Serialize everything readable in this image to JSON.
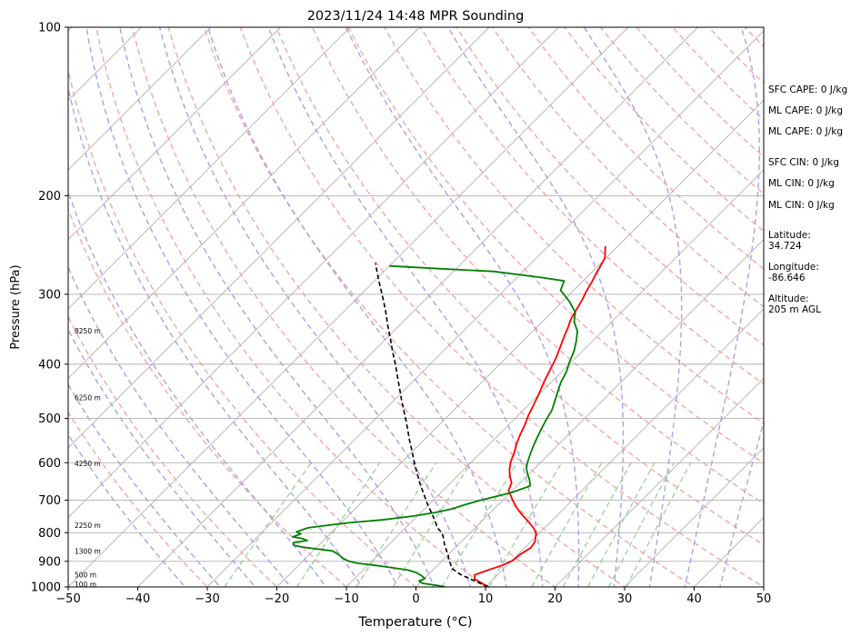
{
  "chart_data": {
    "type": "line",
    "title": "2023/11/24 14:48 MPR Sounding",
    "xlabel": "Temperature (°C)",
    "ylabel": "Pressure (hPa)",
    "xlim": [
      -50,
      50
    ],
    "ylim": [
      1000,
      100
    ],
    "y_scale": "log",
    "x_ticks": [
      "−50",
      "−40",
      "−30",
      "−20",
      "−10",
      "0",
      "10",
      "20",
      "30",
      "40",
      "50"
    ],
    "x_tick_values": [
      -50,
      -40,
      -30,
      -20,
      -10,
      0,
      10,
      20,
      30,
      40,
      50
    ],
    "y_ticks": [
      "100",
      "200",
      "300",
      "400",
      "500",
      "600",
      "700",
      "800",
      "900",
      "1000"
    ],
    "y_tick_values": [
      100,
      200,
      300,
      400,
      500,
      600,
      700,
      800,
      900,
      1000
    ],
    "grid": "horizontal",
    "height_labels": [
      {
        "text": "100 m",
        "p": 993
      },
      {
        "text": "500 m",
        "p": 954
      },
      {
        "text": "1300 m",
        "p": 866
      },
      {
        "text": "2250 m",
        "p": 778
      },
      {
        "text": "4250 m",
        "p": 604
      },
      {
        "text": "6250 m",
        "p": 460
      },
      {
        "text": "8250 m",
        "p": 350
      }
    ],
    "series": [
      {
        "color": "#ff0000",
        "style": "solid",
        "points": [
          [
            10.4,
            1000
          ],
          [
            9.0,
            985
          ],
          [
            7.3,
            968
          ],
          [
            6.7,
            952
          ],
          [
            7.8,
            935
          ],
          [
            9.3,
            915
          ],
          [
            10.1,
            897
          ],
          [
            10.3,
            875
          ],
          [
            10.9,
            851
          ],
          [
            10.6,
            830
          ],
          [
            9.6,
            803
          ],
          [
            8.6,
            787
          ],
          [
            7.0,
            767
          ],
          [
            5.3,
            748
          ],
          [
            4.1,
            734
          ],
          [
            2.8,
            718
          ],
          [
            1.3,
            698
          ],
          [
            0.3,
            684
          ],
          [
            -0.6,
            672
          ],
          [
            -1.2,
            652
          ],
          [
            -2.3,
            636
          ],
          [
            -3.5,
            616
          ],
          [
            -4.4,
            597
          ],
          [
            -5.2,
            575
          ],
          [
            -6.1,
            556
          ],
          [
            -6.9,
            535
          ],
          [
            -7.6,
            515
          ],
          [
            -8.5,
            494
          ],
          [
            -9.3,
            472
          ],
          [
            -10.1,
            452
          ],
          [
            -11.1,
            430
          ],
          [
            -12.0,
            408
          ],
          [
            -12.8,
            390
          ],
          [
            -13.7,
            374
          ],
          [
            -14.6,
            359
          ],
          [
            -15.4,
            345
          ],
          [
            -16.2,
            333
          ],
          [
            -16.8,
            320
          ],
          [
            -17.4,
            307
          ],
          [
            -18.0,
            297
          ],
          [
            -18.6,
            285
          ],
          [
            -19.2,
            275
          ],
          [
            -19.7,
            266
          ],
          [
            -20.2,
            258
          ],
          [
            -21.0,
            252
          ],
          [
            -21.8,
            246
          ]
        ]
      },
      {
        "color": "#008000",
        "style": "solid",
        "points": [
          [
            4.2,
            1000
          ],
          [
            2.7,
            993
          ],
          [
            0.4,
            985
          ],
          [
            -0.4,
            976
          ],
          [
            0.1,
            966
          ],
          [
            -0.9,
            954
          ],
          [
            -2.1,
            942
          ],
          [
            -3.6,
            933
          ],
          [
            -6.4,
            923
          ],
          [
            -9.0,
            915
          ],
          [
            -11.8,
            907
          ],
          [
            -13.3,
            900
          ],
          [
            -14.7,
            888
          ],
          [
            -15.8,
            875
          ],
          [
            -17.2,
            862
          ],
          [
            -20.2,
            854
          ],
          [
            -22.3,
            848
          ],
          [
            -23.6,
            842
          ],
          [
            -24.0,
            834
          ],
          [
            -22.3,
            826
          ],
          [
            -23.2,
            820
          ],
          [
            -24.9,
            814
          ],
          [
            -24.2,
            804
          ],
          [
            -25.1,
            797
          ],
          [
            -24.5,
            790
          ],
          [
            -24.0,
            784
          ],
          [
            -21.0,
            774
          ],
          [
            -18.9,
            768
          ],
          [
            -14.5,
            759
          ],
          [
            -10.6,
            747
          ],
          [
            -7.9,
            736
          ],
          [
            -6.0,
            725
          ],
          [
            -4.8,
            713
          ],
          [
            -3.2,
            700
          ],
          [
            -1.8,
            691
          ],
          [
            0.2,
            678
          ],
          [
            1.9,
            660
          ],
          [
            1.0,
            645
          ],
          [
            -0.3,
            627
          ],
          [
            -1.3,
            612
          ],
          [
            -2.0,
            596
          ],
          [
            -2.8,
            576
          ],
          [
            -3.5,
            557
          ],
          [
            -4.1,
            540
          ],
          [
            -4.8,
            519
          ],
          [
            -5.4,
            500
          ],
          [
            -5.9,
            483
          ],
          [
            -6.8,
            465
          ],
          [
            -7.7,
            448
          ],
          [
            -8.6,
            431
          ],
          [
            -9.3,
            413
          ],
          [
            -10.3,
            396
          ],
          [
            -11.2,
            379
          ],
          [
            -12.3,
            364
          ],
          [
            -13.6,
            349
          ],
          [
            -15.4,
            336
          ],
          [
            -16.6,
            323
          ],
          [
            -19.0,
            309
          ],
          [
            -21.9,
            295
          ],
          [
            -22.7,
            284
          ],
          [
            -26.5,
            280
          ],
          [
            -34.3,
            273
          ],
          [
            -42.5,
            270
          ],
          [
            -50,
            267
          ]
        ]
      },
      {
        "color": "#000000",
        "style": "dashed",
        "points": [
          [
            10.4,
            1000
          ],
          [
            8.3,
            982
          ],
          [
            6.0,
            962
          ],
          [
            4.8,
            952
          ],
          [
            3.6,
            939
          ],
          [
            2.3,
            924
          ],
          [
            1.7,
            910
          ],
          [
            0.8,
            895
          ],
          [
            0.2,
            880
          ],
          [
            -0.7,
            864
          ],
          [
            -1.3,
            852
          ],
          [
            -2.1,
            838
          ],
          [
            -2.8,
            823
          ],
          [
            -3.5,
            810
          ],
          [
            -4.1,
            800
          ],
          [
            -5.5,
            783
          ],
          [
            -6.2,
            771
          ],
          [
            -6.8,
            761
          ],
          [
            -7.9,
            745
          ],
          [
            -9.2,
            726
          ],
          [
            -10.2,
            712
          ],
          [
            -11.5,
            693
          ],
          [
            -12.9,
            673
          ],
          [
            -14.2,
            655
          ],
          [
            -15.8,
            632
          ],
          [
            -17.3,
            611
          ],
          [
            -18.8,
            590
          ],
          [
            -20.4,
            568
          ],
          [
            -22.1,
            546
          ],
          [
            -23.7,
            525
          ],
          [
            -25.4,
            504
          ],
          [
            -27.2,
            483
          ],
          [
            -29.1,
            462
          ],
          [
            -31.0,
            441
          ],
          [
            -33.0,
            420
          ],
          [
            -35.0,
            400
          ],
          [
            -37.2,
            380
          ],
          [
            -39.4,
            360
          ],
          [
            -41.8,
            340
          ],
          [
            -44.1,
            321
          ],
          [
            -46.7,
            302
          ],
          [
            -49.5,
            283
          ],
          [
            -52.4,
            264
          ]
        ]
      }
    ],
    "indices": [
      {
        "label": "SFC CAPE",
        "text": "SFC CAPE: 0 J/kg"
      },
      {
        "label": "ML CAPE",
        "text": "ML CAPE: 0 J/kg"
      },
      {
        "label": "ML CAPE",
        "text": "ML CAPE: 0 J/kg"
      },
      {
        "label": "SFC CIN",
        "text": "SFC CIN: 0 J/kg"
      },
      {
        "label": "ML CIN",
        "text": "ML CIN: 0 J/kg"
      },
      {
        "label": "ML CIN",
        "text": "ML CIN: 0 J/kg"
      }
    ],
    "location": {
      "latitude_label": "Latitude:",
      "latitude": "34.724",
      "longitude_label": "Longitude:",
      "longitude": "-86.646",
      "altitude_label": "Altitude:",
      "altitude": "205 m AGL"
    },
    "colors": {
      "temperature": "#ff0000",
      "dewpoint": "#008000",
      "parcel": "#000000",
      "isotherm": "#b0b0b0",
      "dry_adiabat": "#f4a6a6",
      "moist_adiabat": "#a8a0f0",
      "mixing_ratio": "#9ed49e"
    }
  }
}
